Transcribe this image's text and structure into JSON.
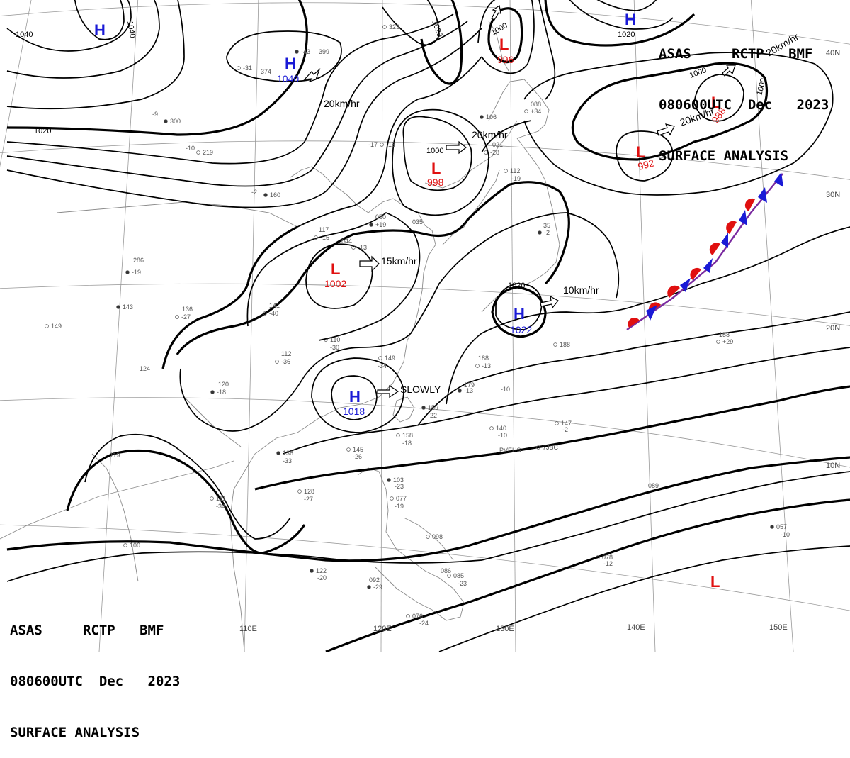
{
  "header": {
    "line1_tokens": [
      "ASAS",
      "RCTP",
      "BMF"
    ],
    "line2_tokens": [
      "080600UTC",
      "Dec",
      "2023"
    ],
    "line3": "SURFACE ANALYSIS"
  },
  "latitude_labels": [
    "40N",
    "30N",
    "20N",
    "10N"
  ],
  "longitude_labels": [
    "110E",
    "120E",
    "130E",
    "140E",
    "150E"
  ],
  "isobar_labels": [
    "1040",
    "1040",
    "1020",
    "1020",
    "1000",
    "1000",
    "1000",
    "1000",
    "1020",
    "1020"
  ],
  "pressure_centers": [
    {
      "type": "H",
      "value": ""
    },
    {
      "type": "H",
      "value": "1040"
    },
    {
      "type": "L",
      "value": "996"
    },
    {
      "type": "H",
      "value": ""
    },
    {
      "type": "L",
      "value": "992"
    },
    {
      "type": "L",
      "value": "988"
    },
    {
      "type": "L",
      "value": "998"
    },
    {
      "type": "L",
      "value": "1002"
    },
    {
      "type": "H",
      "value": "1022"
    },
    {
      "type": "H",
      "value": "1018"
    },
    {
      "type": "L",
      "value": ""
    }
  ],
  "movement_labels": [
    "20km/hr",
    "20km/hr",
    "20km/hr",
    "15km/hr",
    "10km/hr",
    "SLOWLY",
    "20km/hr"
  ],
  "station_obs": [
    "-43",
    "399",
    "-31",
    "374",
    "323",
    "-9",
    "300",
    "-10",
    "219",
    "-17",
    "-15",
    "-2",
    "160",
    "117",
    "-15",
    "044",
    "-13",
    "050",
    "+19",
    "035",
    "110",
    "-30",
    "149",
    "-34",
    "143",
    "136",
    "-27",
    "141",
    "-40",
    "286",
    "-19",
    "124",
    "149",
    "112",
    "-36",
    "120",
    "-18",
    "119",
    "111",
    "-34",
    "128",
    "-27",
    "136",
    "-33",
    "145",
    "-26",
    "158",
    "-18",
    "103",
    "-23",
    "077",
    "-19",
    "098",
    "092",
    "-29",
    "086",
    "085",
    "-23",
    "076",
    "-24",
    "122",
    "-20",
    "100",
    "188",
    "-13",
    "179",
    "-13",
    "-10",
    "140",
    "-10",
    "147",
    "-2",
    "159",
    "-22",
    "188",
    "158",
    "+29",
    "089",
    "057",
    "-10",
    "078",
    "-12",
    "112",
    "-19",
    "106",
    "088",
    "+34",
    "021",
    "-28",
    "35",
    "-2",
    "PVEHS",
    "7JBC"
  ],
  "colors": {
    "high": "#1a1ad6",
    "low": "#e01010",
    "warm_front": "#e01010",
    "cold_front": "#1a1ad6"
  }
}
